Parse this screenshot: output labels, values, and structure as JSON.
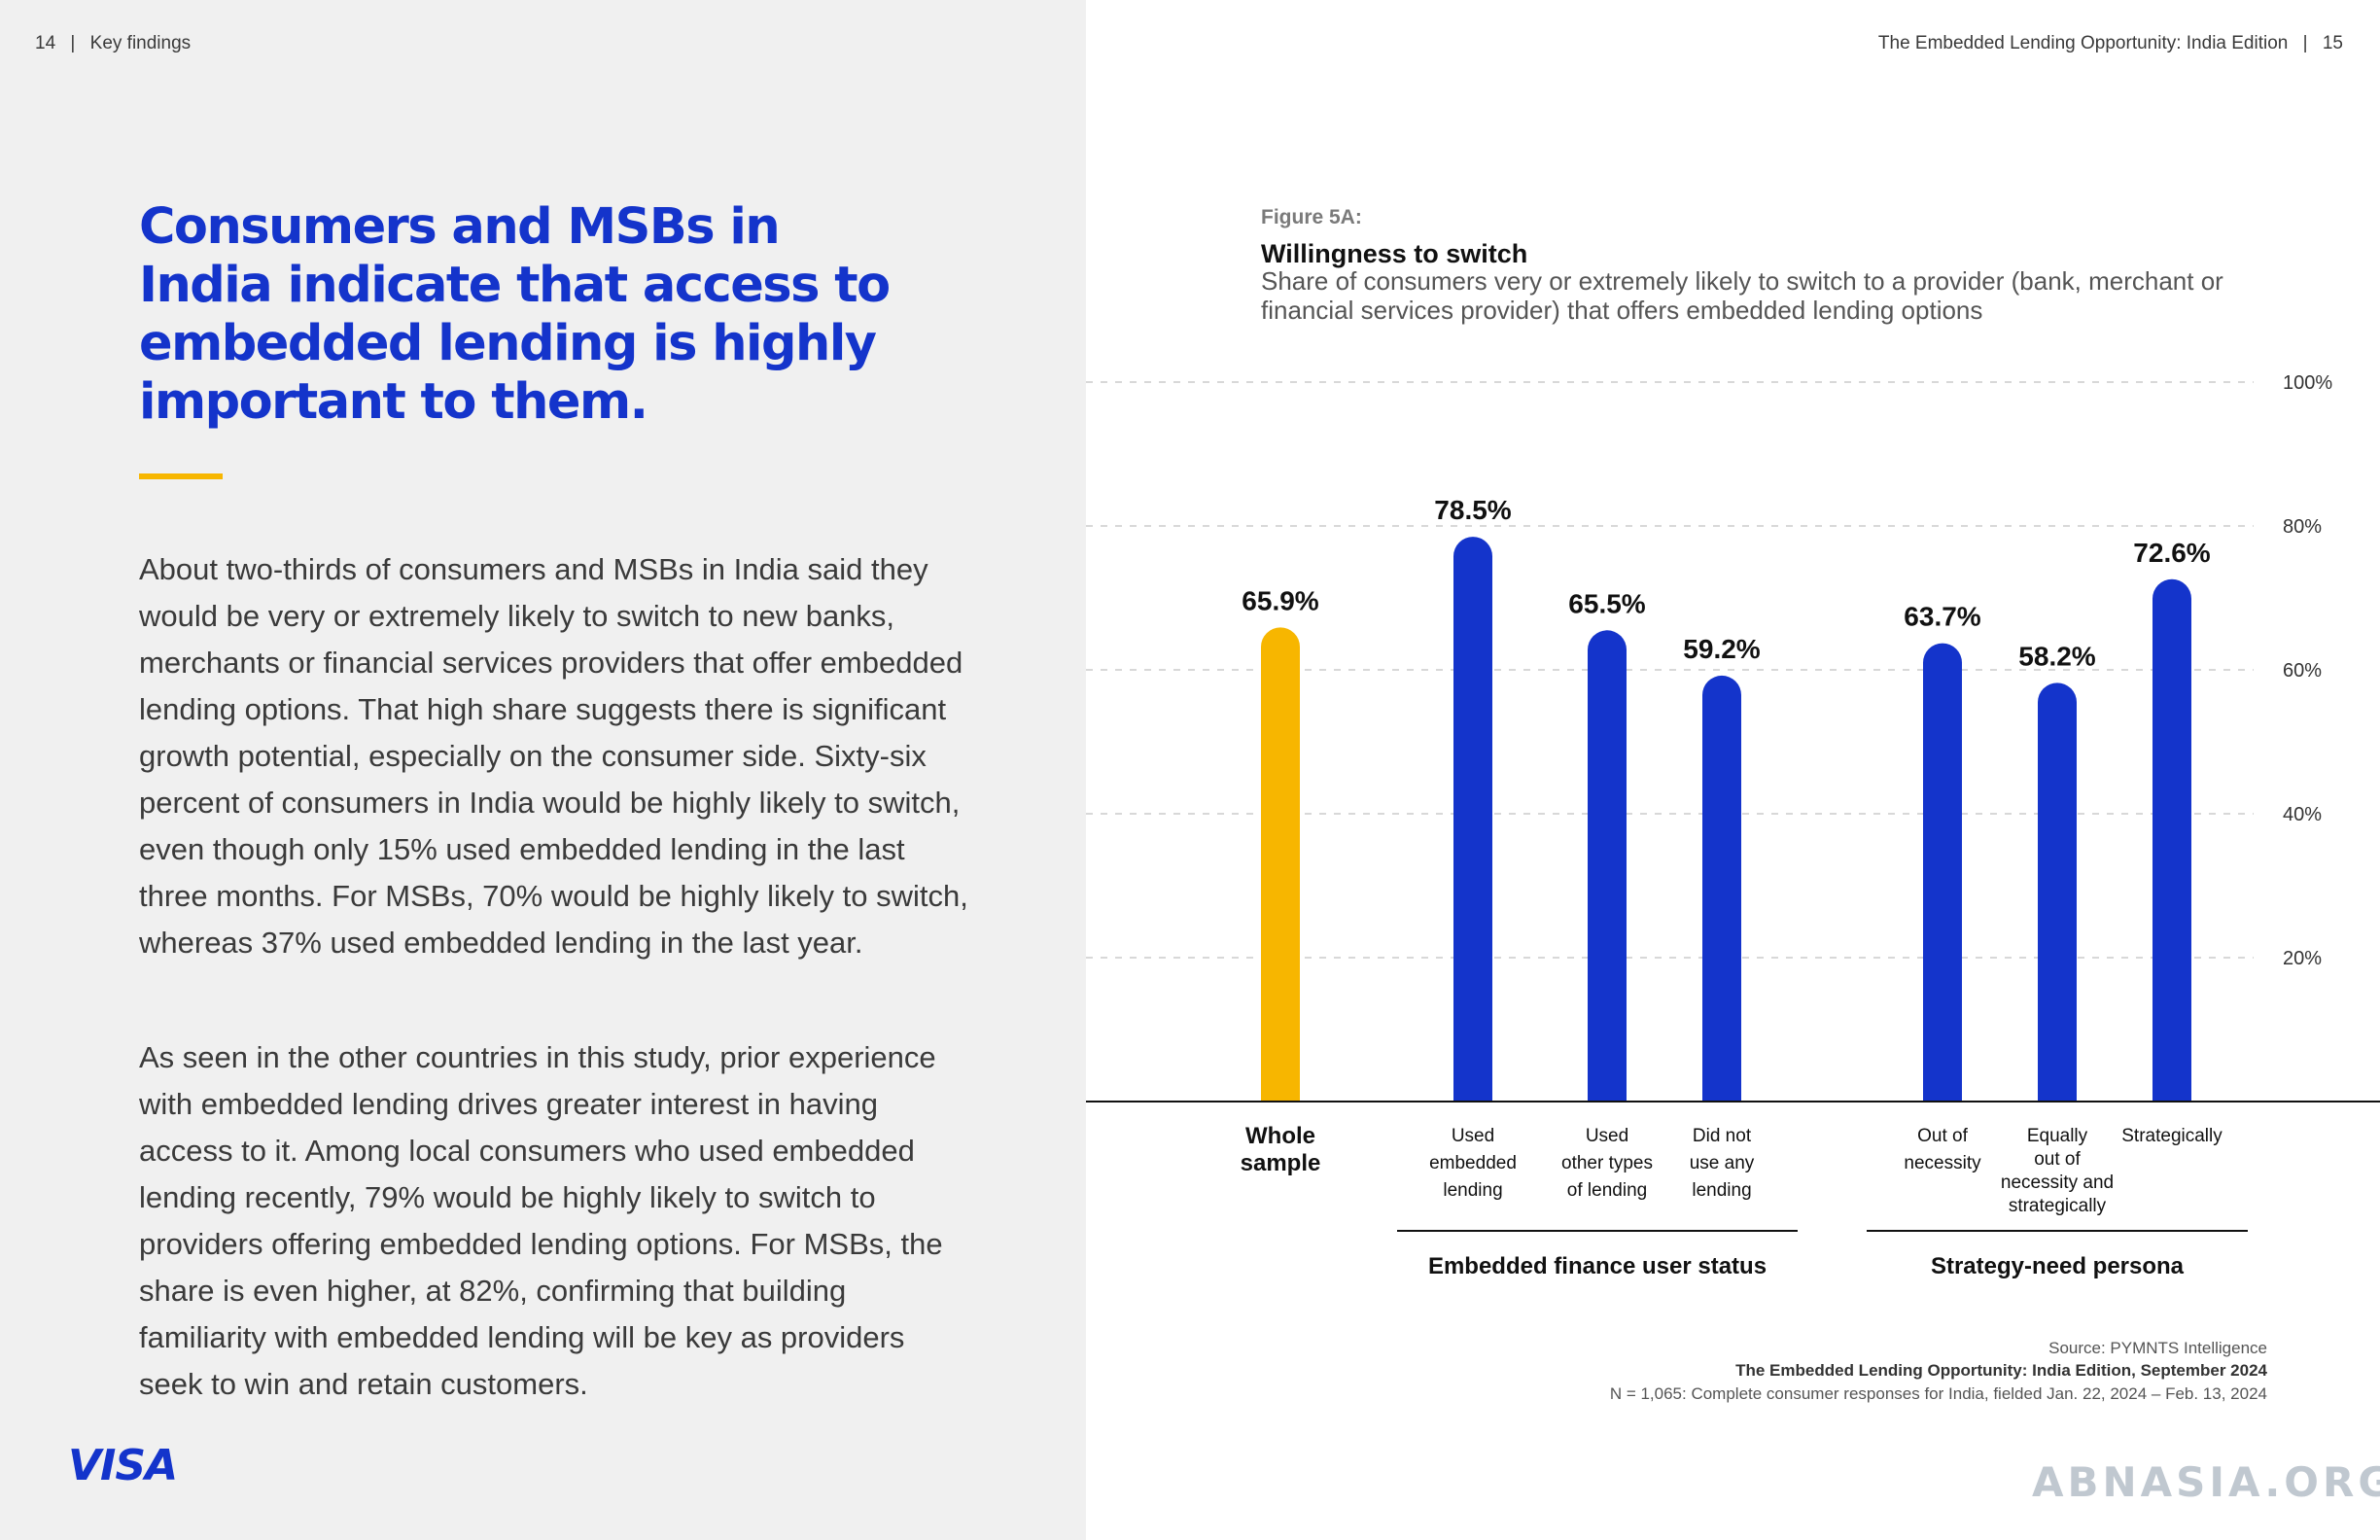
{
  "left_page": {
    "header": {
      "page_number": "14",
      "separator": "|",
      "section": "Key findings"
    },
    "headline": "Consumers and MSBs in India indicate that access to embedded lending is highly important to them.",
    "paragraphs": [
      "About two-thirds of consumers and MSBs in India said they would be very or extremely likely to switch to new banks, merchants or financial services providers that offer embedded lending options. That high share suggests there is significant growth potential, especially on the consumer side. Sixty-six percent of consumers in India would be highly likely to switch, even though only 15% used embedded lending in the last three months. For MSBs, 70% would be highly likely to switch, whereas 37% used embedded lending in the last year.",
      "As seen in the other countries in this study, prior experience with embedded lending drives greater interest in having access to it. Among local consumers who used embedded lending recently, 79% would be highly likely to switch to providers offering embedded lending options. For MSBs, the share is even higher, at 82%, confirming that building familiarity with embedded lending will be key as providers seek to win and retain customers."
    ],
    "logo_text": "VISA"
  },
  "right_page": {
    "header": {
      "publication": "The Embedded Lending Opportunity: India Edition",
      "separator": "|",
      "page_number": "15"
    },
    "figure_label": "Figure 5A:",
    "figure_title": "Willingness to switch",
    "figure_subtitle": "Share of consumers very or extremely likely to switch to a provider (bank, merchant or financial services provider) that offers embedded lending options",
    "source_line": "Source: PYMNTS Intelligence",
    "report_line": "The Embedded Lending Opportunity: India Edition, September 2024",
    "sample_line": "N = 1,065: Complete consumer responses for India, fielded Jan. 22, 2024 – Feb. 13, 2024",
    "watermark": "ABNASIA.ORG"
  },
  "colors": {
    "blue": "#1434cb",
    "gold": "#f7b600",
    "grid": "#d8d8d8"
  },
  "chart_data": {
    "type": "bar",
    "categories": [
      "Whole sample",
      "Used embedded lending",
      "Used other types of lending",
      "Did not use any lending",
      "Out of necessity",
      "Equally out of necessity and strategically",
      "Strategically"
    ],
    "category_label_lines": [
      [
        "Whole",
        "sample"
      ],
      [
        "Used",
        "embedded",
        "lending"
      ],
      [
        "Used",
        "other types",
        "of lending"
      ],
      [
        "Did not",
        "use any",
        "lending"
      ],
      [
        "Out of",
        "necessity"
      ],
      [
        "Equally",
        "out of",
        "necessity and",
        "strategically"
      ],
      [
        "Strategically"
      ]
    ],
    "values": [
      65.9,
      78.5,
      65.5,
      59.2,
      63.7,
      58.2,
      72.6
    ],
    "value_labels": [
      "65.9%",
      "78.5%",
      "65.5%",
      "59.2%",
      "63.7%",
      "58.2%",
      "72.6%"
    ],
    "highlight": [
      true,
      false,
      false,
      false,
      false,
      false,
      false
    ],
    "groups": [
      {
        "label": "Embedded finance user status",
        "members": [
          1,
          2,
          3
        ]
      },
      {
        "label": "Strategy-need persona",
        "members": [
          4,
          5,
          6
        ]
      }
    ],
    "ylim": [
      0,
      100
    ],
    "y_ticks": [
      20,
      40,
      60,
      80,
      100
    ],
    "y_tick_labels": [
      "20%",
      "40%",
      "60%",
      "80%",
      "100%"
    ],
    "grid": true
  }
}
